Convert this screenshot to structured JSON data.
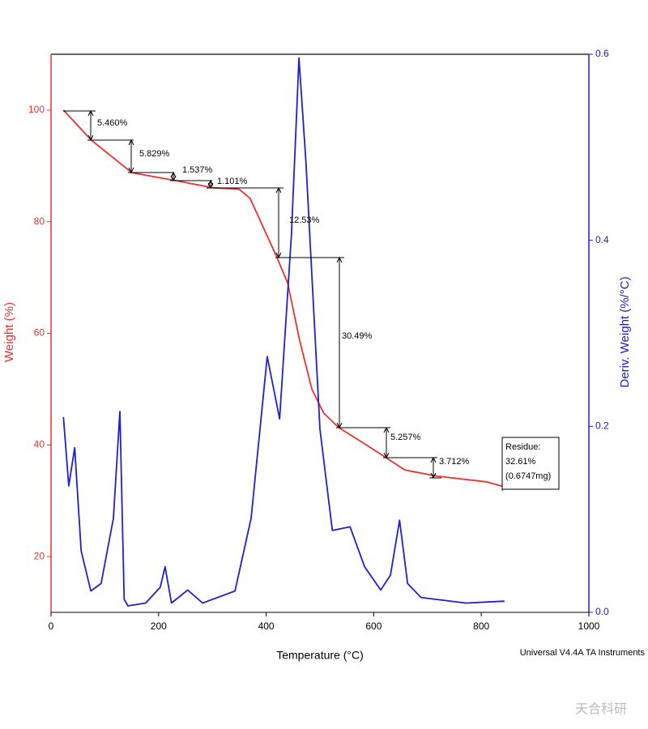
{
  "chart_data": {
    "type": "line",
    "x_label": "Temperature (°C)",
    "y_label": "Weight (%)",
    "y2_label": "Deriv. Weight (%/°C)",
    "xlim": [
      0,
      1000
    ],
    "xticks": [
      0,
      200,
      400,
      600,
      800,
      1000
    ],
    "ylim": [
      10,
      110
    ],
    "yticks": [
      20,
      40,
      60,
      80,
      100
    ],
    "y2lim": [
      0,
      0.6
    ],
    "y2ticks": [
      {
        "value": 0,
        "label": "0.0"
      },
      0.2,
      0.4,
      0.6
    ],
    "series": [
      {
        "name": "Weight",
        "color": "#e8322d",
        "axis": "y",
        "x": [
          23,
          75,
          150,
          230,
          300,
          350,
          370,
          420,
          440,
          462,
          485,
          507,
          535,
          583,
          623,
          658,
          718,
          809,
          839
        ],
        "values": [
          100,
          94.6,
          88.8,
          87.4,
          86.1,
          85.8,
          84.2,
          73.6,
          69,
          58.8,
          50,
          45.7,
          43.1,
          40.2,
          37.7,
          35.5,
          34.4,
          33.4,
          32.6
        ]
      },
      {
        "name": "Deriv. Weight",
        "color": "#2020c8",
        "axis": "y2",
        "x": [
          23,
          33,
          44,
          56,
          74,
          93,
          116,
          128,
          136,
          143,
          176,
          203,
          212,
          224,
          254,
          282,
          342,
          372,
          402,
          425,
          447,
          461,
          474,
          500,
          523,
          556,
          583,
          613,
          631,
          648,
          663,
          688,
          771,
          843
        ],
        "values": [
          0.21,
          0.136,
          0.177,
          0.066,
          0.023,
          0.031,
          0.101,
          0.216,
          0.014,
          0.007,
          0.01,
          0.027,
          0.049,
          0.01,
          0.024,
          0.01,
          0.023,
          0.101,
          0.275,
          0.208,
          0.406,
          0.596,
          0.484,
          0.197,
          0.088,
          0.092,
          0.049,
          0.024,
          0.04,
          0.099,
          0.031,
          0.016,
          0.01,
          0.012
        ]
      }
    ],
    "annotations": [
      "5.460%",
      "5.829%",
      "1.537%",
      "1.101%",
      "12.53%",
      "30.49%",
      "5.257%",
      "3.712%"
    ],
    "residue": [
      "Residue:",
      "32.61%",
      "(0.6747mg)"
    ],
    "footer": "Universal V4.4A TA Instruments",
    "watermark": "天合科研"
  }
}
